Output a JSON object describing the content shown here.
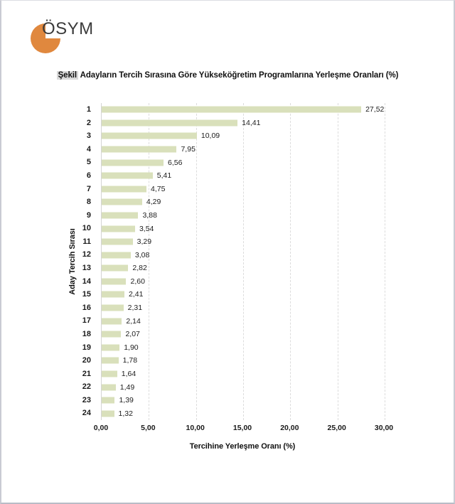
{
  "page": {
    "logo_text": "ÖSYM"
  },
  "figure_title": {
    "highlight": "Şekil",
    "rest": "Adayların Tercih Sırasına Göre Yükseköğretim Programlarına Yerleşme Oranları (%)"
  },
  "chart_data": {
    "type": "bar",
    "orientation": "horizontal",
    "title": "Şekil Adayların Tercih Sırasına Göre Yükseköğretim Programlarına Yerleşme Oranları (%)",
    "xlabel": "Tercihine Yerleşme Oranı (%)",
    "ylabel": "Aday Tercih Sırası",
    "categories": [
      "1",
      "2",
      "3",
      "4",
      "5",
      "6",
      "7",
      "8",
      "9",
      "10",
      "11",
      "12",
      "13",
      "14",
      "15",
      "16",
      "17",
      "18",
      "19",
      "20",
      "21",
      "22",
      "23",
      "24"
    ],
    "values": [
      27.52,
      14.41,
      10.09,
      7.95,
      6.56,
      5.41,
      4.75,
      4.29,
      3.88,
      3.54,
      3.29,
      3.08,
      2.82,
      2.6,
      2.41,
      2.31,
      2.14,
      2.07,
      1.9,
      1.78,
      1.64,
      1.49,
      1.39,
      1.32
    ],
    "value_labels": [
      "27,52",
      "14,41",
      "10,09",
      "7,95",
      "6,56",
      "5,41",
      "4,75",
      "4,29",
      "3,88",
      "3,54",
      "3,29",
      "3,08",
      "2,82",
      "2,60",
      "2,41",
      "2,31",
      "2,14",
      "2,07",
      "1,90",
      "1,78",
      "1,64",
      "1,49",
      "1,39",
      "1,32"
    ],
    "xlim": [
      0,
      30
    ],
    "x_ticks": [
      0,
      5,
      10,
      15,
      20,
      25,
      30
    ],
    "x_tick_labels": [
      "0,00",
      "5,00",
      "10,00",
      "15,00",
      "20,00",
      "25,00",
      "30,00"
    ],
    "grid": "vertical-dashed",
    "legend": "none",
    "colors": {
      "bar": "#d9e0bb",
      "gridline": "#dcdcdc",
      "axis_line": "#d4d4d4",
      "title_highlight_bg": "#d9d9d9",
      "logo_orange": "#e0883e"
    }
  }
}
